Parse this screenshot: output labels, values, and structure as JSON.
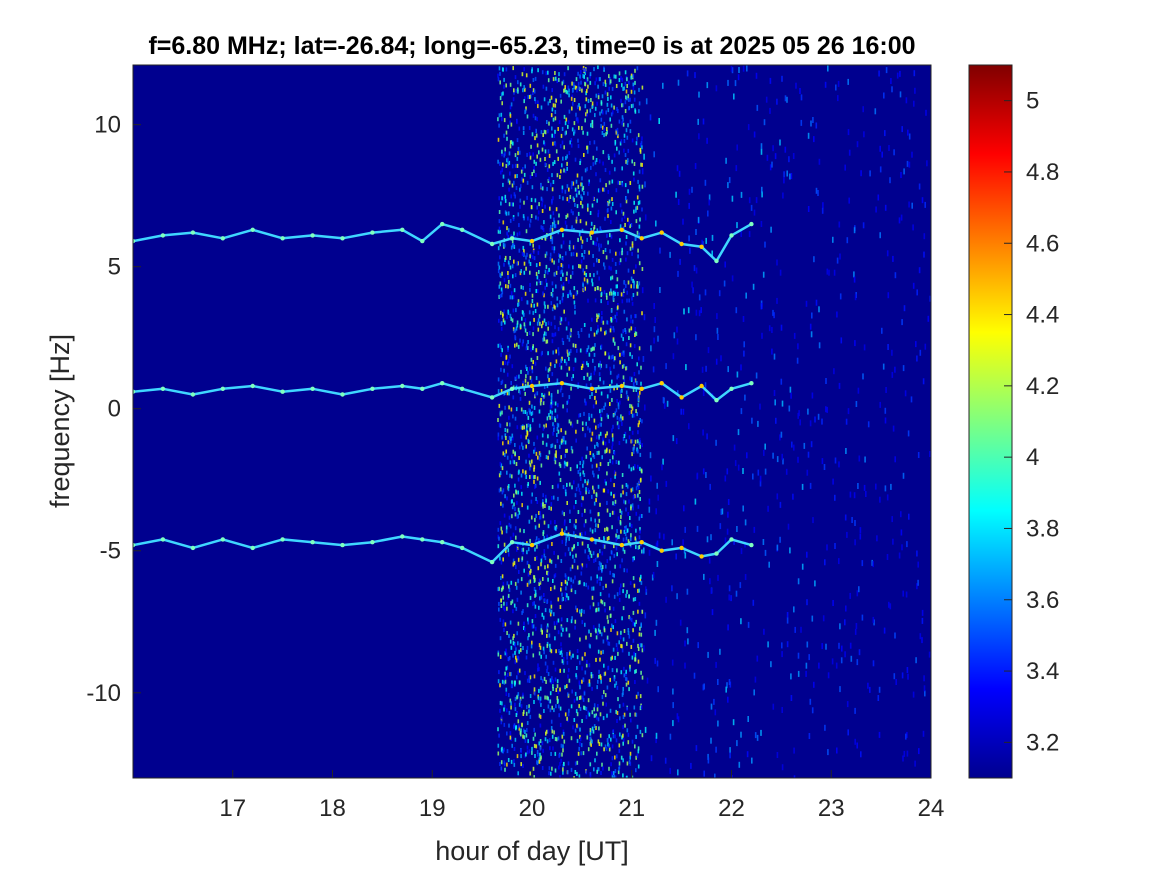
{
  "chart_data": {
    "type": "heatmap",
    "title": "f=6.80 MHz;  lat=-26.84; long=-65.23, time=0 is at 2025 05 26 16:00",
    "xlabel": "hour of day [UT]",
    "ylabel": "frequency [Hz]",
    "xlim": [
      16,
      24
    ],
    "ylim": [
      -13,
      12.1
    ],
    "x_ticks": [
      17,
      18,
      19,
      20,
      21,
      22,
      23,
      24
    ],
    "y_ticks": [
      -10,
      -5,
      0,
      5,
      10
    ],
    "colorbar": {
      "colormap": "jet",
      "range": [
        3.1,
        5.1
      ],
      "ticks": [
        3.2,
        3.4,
        3.6,
        3.8,
        4,
        4.2,
        4.4,
        4.6,
        4.8,
        5
      ]
    },
    "noise_bands": [
      {
        "x_start": 19.65,
        "x_end": 21.1,
        "level": "high"
      },
      {
        "x_start": 21.1,
        "x_end": 24,
        "level": "low"
      }
    ],
    "traces": [
      {
        "x": [
          16.0,
          16.3,
          16.6,
          16.9,
          17.2,
          17.5,
          17.8,
          18.1,
          18.4,
          18.7,
          18.9,
          19.1,
          19.3,
          19.6,
          19.8,
          20.0,
          20.3,
          20.6,
          20.9,
          21.1,
          21.3,
          21.5,
          21.7,
          21.85,
          22.0,
          22.2
        ],
        "y": [
          5.9,
          6.1,
          6.2,
          6.0,
          6.3,
          6.0,
          6.1,
          6.0,
          6.2,
          6.3,
          5.9,
          6.5,
          6.3,
          5.8,
          6.0,
          5.9,
          6.3,
          6.2,
          6.3,
          6.0,
          6.2,
          5.8,
          5.7,
          5.2,
          6.1,
          6.5
        ]
      },
      {
        "x": [
          16.0,
          16.3,
          16.6,
          16.9,
          17.2,
          17.5,
          17.8,
          18.1,
          18.4,
          18.7,
          18.9,
          19.1,
          19.3,
          19.6,
          19.8,
          20.0,
          20.3,
          20.6,
          20.9,
          21.1,
          21.3,
          21.5,
          21.7,
          21.85,
          22.0,
          22.2
        ],
        "y": [
          0.6,
          0.7,
          0.5,
          0.7,
          0.8,
          0.6,
          0.7,
          0.5,
          0.7,
          0.8,
          0.7,
          0.9,
          0.7,
          0.4,
          0.7,
          0.8,
          0.9,
          0.7,
          0.8,
          0.7,
          0.9,
          0.4,
          0.8,
          0.3,
          0.7,
          0.9
        ]
      },
      {
        "x": [
          16.0,
          16.3,
          16.6,
          16.9,
          17.2,
          17.5,
          17.8,
          18.1,
          18.4,
          18.7,
          18.9,
          19.1,
          19.3,
          19.6,
          19.8,
          20.0,
          20.3,
          20.6,
          20.9,
          21.1,
          21.3,
          21.5,
          21.7,
          21.85,
          22.0,
          22.2
        ],
        "y": [
          -4.8,
          -4.6,
          -4.9,
          -4.6,
          -4.9,
          -4.6,
          -4.7,
          -4.8,
          -4.7,
          -4.5,
          -4.6,
          -4.7,
          -4.9,
          -5.4,
          -4.7,
          -4.8,
          -4.4,
          -4.6,
          -4.8,
          -4.7,
          -5.0,
          -4.9,
          -5.2,
          -5.1,
          -4.6,
          -4.8
        ]
      }
    ]
  }
}
